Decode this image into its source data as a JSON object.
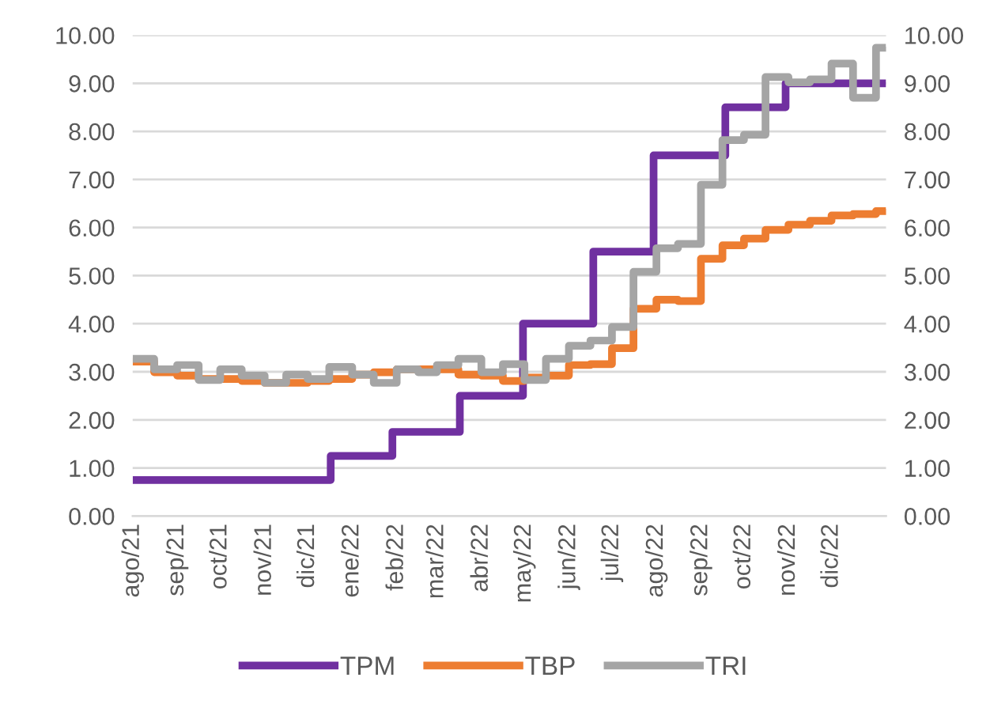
{
  "chart_data": {
    "type": "step",
    "xlim": [
      "2021-08-01",
      "2023-01-08"
    ],
    "xticks": [
      {
        "value": "2021-08-01",
        "label": "ago/21"
      },
      {
        "value": "2021-09-01",
        "label": "sep/21"
      },
      {
        "value": "2021-10-01",
        "label": "oct/21"
      },
      {
        "value": "2021-11-01",
        "label": "nov/21"
      },
      {
        "value": "2021-12-01",
        "label": "dic/21"
      },
      {
        "value": "2022-01-01",
        "label": "ene/22"
      },
      {
        "value": "2022-02-01",
        "label": "feb/22"
      },
      {
        "value": "2022-03-01",
        "label": "mar/22"
      },
      {
        "value": "2022-04-01",
        "label": "abr/22"
      },
      {
        "value": "2022-05-01",
        "label": "may/22"
      },
      {
        "value": "2022-06-01",
        "label": "jun/22"
      },
      {
        "value": "2022-07-01",
        "label": "jul/22"
      },
      {
        "value": "2022-08-01",
        "label": "ago/22"
      },
      {
        "value": "2022-09-01",
        "label": "sep/22"
      },
      {
        "value": "2022-10-01",
        "label": "oct/22"
      },
      {
        "value": "2022-11-01",
        "label": "nov/22"
      },
      {
        "value": "2022-12-01",
        "label": "dic/22"
      }
    ],
    "ylim": [
      0,
      10
    ],
    "yticks": [
      {
        "value": 0,
        "label": "0.00"
      },
      {
        "value": 1,
        "label": "1.00"
      },
      {
        "value": 2,
        "label": "2.00"
      },
      {
        "value": 3,
        "label": "3.00"
      },
      {
        "value": 4,
        "label": "4.00"
      },
      {
        "value": 5,
        "label": "5.00"
      },
      {
        "value": 6,
        "label": "6.00"
      },
      {
        "value": 7,
        "label": "7.00"
      },
      {
        "value": 8,
        "label": "8.00"
      },
      {
        "value": 9,
        "label": "9.00"
      },
      {
        "value": 10,
        "label": "10.00"
      }
    ],
    "y2lim": [
      0,
      10
    ],
    "y2ticks": [
      {
        "value": 0,
        "label": "0.00"
      },
      {
        "value": 1,
        "label": "1.00"
      },
      {
        "value": 2,
        "label": "2.00"
      },
      {
        "value": 3,
        "label": "3.00"
      },
      {
        "value": 4,
        "label": "4.00"
      },
      {
        "value": 5,
        "label": "5.00"
      },
      {
        "value": 6,
        "label": "6.00"
      },
      {
        "value": 7,
        "label": "7.00"
      },
      {
        "value": 8,
        "label": "8.00"
      },
      {
        "value": 9,
        "label": "9.00"
      },
      {
        "value": 10,
        "label": "10.00"
      }
    ],
    "grid": "y",
    "legend": "bottom",
    "marker": "none",
    "line_style": "solid",
    "series": [
      {
        "name": "TPM",
        "color": "#7030a0",
        "x": [
          "2021-08-01",
          "2021-12-17",
          "2022-01-29",
          "2022-03-17",
          "2022-04-30",
          "2022-06-18",
          "2022-07-30",
          "2022-09-18",
          "2022-10-30",
          "2023-01-08"
        ],
        "values": [
          0.75,
          1.25,
          1.75,
          2.5,
          4.0,
          5.5,
          7.5,
          8.5,
          9.0,
          9.0
        ]
      },
      {
        "name": "TBP",
        "color": "#ed7d31",
        "x": [
          "2021-08-01",
          "2021-08-16",
          "2021-09-01",
          "2021-09-16",
          "2021-10-01",
          "2021-10-16",
          "2021-11-01",
          "2021-11-16",
          "2021-12-01",
          "2021-12-16",
          "2022-01-01",
          "2022-01-16",
          "2022-02-01",
          "2022-02-16",
          "2022-03-01",
          "2022-03-16",
          "2022-04-01",
          "2022-04-16",
          "2022-05-01",
          "2022-05-16",
          "2022-06-01",
          "2022-06-16",
          "2022-07-01",
          "2022-07-16",
          "2022-08-01",
          "2022-08-16",
          "2022-09-01",
          "2022-09-16",
          "2022-10-01",
          "2022-10-16",
          "2022-11-01",
          "2022-11-16",
          "2022-12-01",
          "2022-12-16",
          "2023-01-01",
          "2023-01-08"
        ],
        "values": [
          3.21,
          2.99,
          2.92,
          2.85,
          2.85,
          2.81,
          2.77,
          2.77,
          2.81,
          2.85,
          2.94,
          2.99,
          3.05,
          3.05,
          3.05,
          2.94,
          2.92,
          2.81,
          2.88,
          2.92,
          3.14,
          3.16,
          3.49,
          4.31,
          4.5,
          4.47,
          5.35,
          5.63,
          5.77,
          5.95,
          6.06,
          6.14,
          6.25,
          6.28,
          6.34,
          6.39
        ]
      },
      {
        "name": "TRI",
        "color": "#a5a5a5",
        "x": [
          "2021-08-01",
          "2021-08-16",
          "2021-09-01",
          "2021-09-16",
          "2021-10-01",
          "2021-10-16",
          "2021-11-01",
          "2021-11-16",
          "2021-12-01",
          "2021-12-16",
          "2022-01-01",
          "2022-01-16",
          "2022-02-01",
          "2022-02-16",
          "2022-03-01",
          "2022-03-16",
          "2022-04-01",
          "2022-04-16",
          "2022-05-01",
          "2022-05-16",
          "2022-06-01",
          "2022-06-16",
          "2022-07-01",
          "2022-07-16",
          "2022-08-01",
          "2022-08-16",
          "2022-09-01",
          "2022-09-16",
          "2022-10-01",
          "2022-10-16",
          "2022-11-01",
          "2022-11-16",
          "2022-12-01",
          "2022-12-16",
          "2023-01-01",
          "2023-01-08"
        ],
        "values": [
          3.27,
          3.05,
          3.14,
          2.83,
          3.05,
          2.92,
          2.77,
          2.94,
          2.85,
          3.1,
          2.94,
          2.77,
          3.05,
          2.99,
          3.14,
          3.27,
          2.99,
          3.16,
          2.83,
          3.27,
          3.54,
          3.65,
          3.93,
          5.08,
          5.57,
          5.66,
          6.89,
          7.82,
          7.93,
          9.13,
          9.02,
          9.08,
          9.41,
          8.7,
          9.74,
          9.76
        ]
      }
    ]
  }
}
